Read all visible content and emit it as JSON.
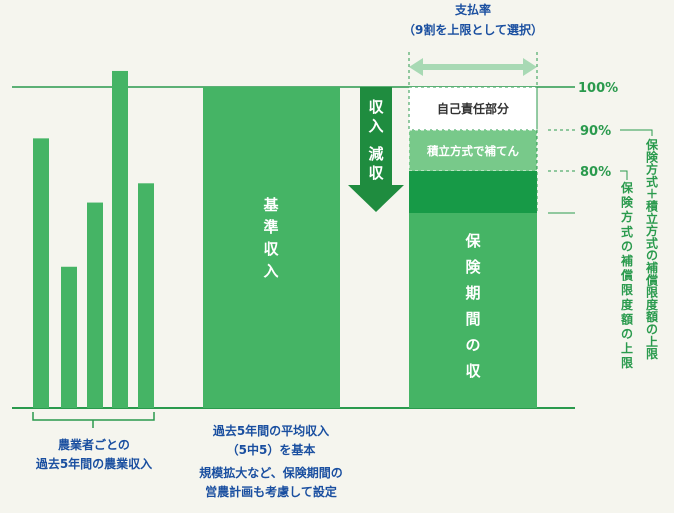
{
  "colors": {
    "background": "#f5f5ee",
    "green": "#45b465",
    "green_light": "#78c98a",
    "green_dark": "#179a47",
    "arrow": "#1f8c3f",
    "line": "#2a9a4d",
    "text_blue": "#1a4fa0",
    "text_dark": "#333333"
  },
  "labels": {
    "payment_rate": "支払率",
    "payment_rate_note": "（9割を上限として選択）",
    "pct_100": "100%",
    "pct_90": "90%",
    "pct_80": "80%",
    "self_responsibility": "自己責任部分",
    "reserve": "積立方式で補てん",
    "income_drop": "収入減収",
    "base_income": "基準収入",
    "insured_income": "保険期間の収入",
    "insurance_cap": "保険方式の補償限度額の上限",
    "insurance_reserve_cap_a": "保険方式",
    "insurance_reserve_cap_plus": "＋",
    "insurance_reserve_cap_b": "積立方式",
    "insurance_reserve_cap_c": "の補償限度額の上限",
    "farm_income_line1": "農業者ごとの",
    "farm_income_line2": "過去5年間の農業収入",
    "avg_line1": "過去5年間の平均収入",
    "avg_line2": "（5中5）を基本",
    "plan_line1": "規模拡大など、保険期間の",
    "plan_line2": "営農計画も考慮して設定"
  },
  "icons": {
    "income_drop_arrow": "down-arrow-icon",
    "payment_rate_range": "double-arrow-icon"
  },
  "past_income_levels": [
    0.84,
    0.44,
    0.64,
    1.05,
    0.7
  ]
}
